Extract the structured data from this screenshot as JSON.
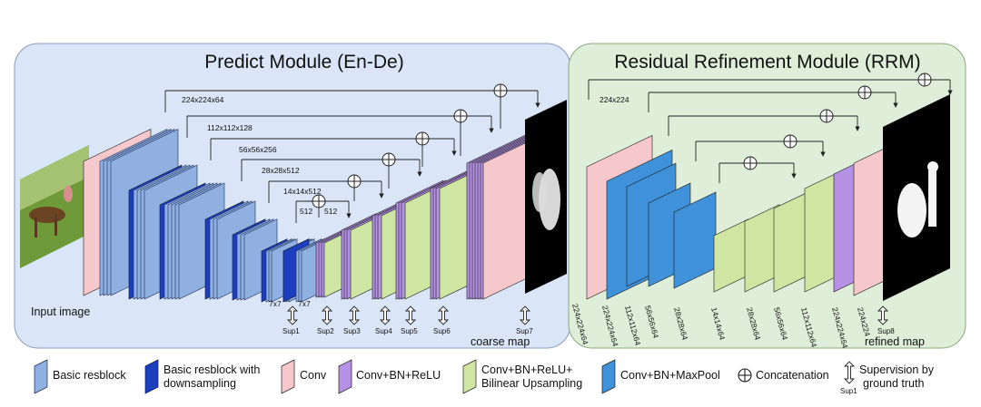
{
  "modules": {
    "predict": {
      "title": "Predict Module (En-De)"
    },
    "refine": {
      "title": "Residual Refinement Module (RRM)"
    }
  },
  "labels": {
    "input_image": "Input image",
    "coarse_map": "coarse map",
    "refined_map": "refined map"
  },
  "predict_skip_labels": [
    "224x224x64",
    "112x112x128",
    "56x56x256",
    "28x28x512",
    "14x14x512",
    "512",
    "512"
  ],
  "bridge_labels": [
    "7x7",
    "7x7"
  ],
  "predict_sup_labels": [
    "Sup1",
    "Sup2",
    "Sup3",
    "Sup4",
    "Sup5",
    "Sup6",
    "Sup7"
  ],
  "rrm_top_label": "224x224",
  "rrm_rotated_labels": [
    "224x224x64",
    "224x224x64",
    "112x112x64",
    "56x56x64",
    "28x28x64",
    "14x14x64",
    "28x28x64",
    "56x56x64",
    "112x112x64",
    "224x224x64",
    "224x224"
  ],
  "rrm_sup_label": "Sup8",
  "legend": {
    "basic_resblock": "Basic resblock",
    "basic_resblock_ds_1": "Basic resblock with",
    "basic_resblock_ds_2": "downsampling",
    "conv": "Conv",
    "conv_bn_relu": "Conv+BN+ReLU",
    "conv_bn_relu_up_1": "Conv+BN+ReLU+",
    "conv_bn_relu_up_2": "Bilinear Upsampling",
    "conv_bn_maxpool": "Conv+BN+MaxPool",
    "concatenation": "Concatenation",
    "supervision_1": "Supervision by",
    "supervision_2": "ground truth",
    "supervision_sub": "Sup1"
  },
  "colors": {
    "predict_bg": "#dae6f7",
    "refine_bg": "#dfeed9",
    "resblock": "#8fb0e0",
    "resblock_ds": "#1b3fbf",
    "conv": "#f6c7cb",
    "conv_bn_relu": "#b592e6",
    "conv_bn_relu_up": "#cfe6a3",
    "conv_bn_maxpool": "#3f92d9"
  }
}
